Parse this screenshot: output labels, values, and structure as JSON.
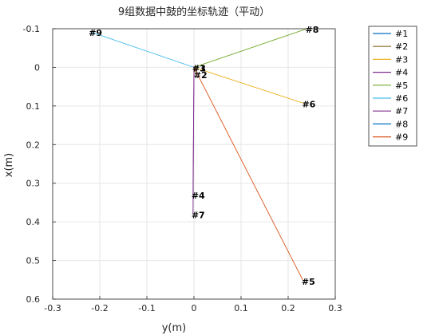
{
  "chart_data": {
    "type": "line",
    "title": "9组数据中鼓的坐标轨迹（平动）",
    "xlabel": "y(m)",
    "ylabel": "x(m)",
    "xlim": [
      -0.3,
      0.3
    ],
    "ylim": [
      -0.1,
      0.6
    ],
    "y_reversed": true,
    "x_ticks": [
      "-0.3",
      "-0.2",
      "-0.1",
      "0",
      "0.1",
      "0.2",
      "0.3"
    ],
    "x_tick_values": [
      -0.3,
      -0.2,
      -0.1,
      0,
      0.1,
      0.2,
      0.3
    ],
    "y_ticks": [
      "-0.1",
      "0",
      "0.1",
      "0.2",
      "0.3",
      "0.4",
      "0.5",
      "0.6"
    ],
    "y_tick_values": [
      -0.1,
      0,
      0.1,
      0.2,
      0.3,
      0.4,
      0.5,
      0.6
    ],
    "grid": true,
    "legend_position": "outside-top-right",
    "series": [
      {
        "name": "#1",
        "color": "#0072BD",
        "x": [
          0,
          0
        ],
        "y": [
          0,
          0
        ],
        "end_label": "#1"
      },
      {
        "name": "#2",
        "color": "#8C6B2A",
        "x": [
          0,
          0.003
        ],
        "y": [
          0,
          0.018
        ],
        "end_label": "#2"
      },
      {
        "name": "#3",
        "color": "#EDB120",
        "x": [
          0,
          0.233
        ],
        "y": [
          0,
          0.093
        ],
        "end_label": "#6"
      },
      {
        "name": "#4",
        "color": "#7E2F8E",
        "x": [
          0,
          -0.002
        ],
        "y": [
          0,
          0.33
        ],
        "end_label": "#4"
      },
      {
        "name": "#5",
        "color": "#77AC30",
        "x": [
          0,
          0.24
        ],
        "y": [
          0,
          -0.1
        ],
        "end_label": "#8"
      },
      {
        "name": "#6",
        "color": "#4DBEEE",
        "x": [
          0,
          -0.22
        ],
        "y": [
          0,
          -0.092
        ],
        "end_label": "#9"
      },
      {
        "name": "#7",
        "color": "#7E2F8E",
        "x": [
          0,
          -0.002
        ],
        "y": [
          0,
          0.38
        ],
        "end_label": "#7"
      },
      {
        "name": "#8",
        "color": "#0072BD",
        "x": [
          0,
          0
        ],
        "y": [
          0,
          0
        ],
        "end_label": "#3"
      },
      {
        "name": "#9",
        "color": "#D95319",
        "x": [
          0,
          0.232
        ],
        "y": [
          0,
          0.553
        ],
        "end_label": "#5"
      }
    ]
  }
}
